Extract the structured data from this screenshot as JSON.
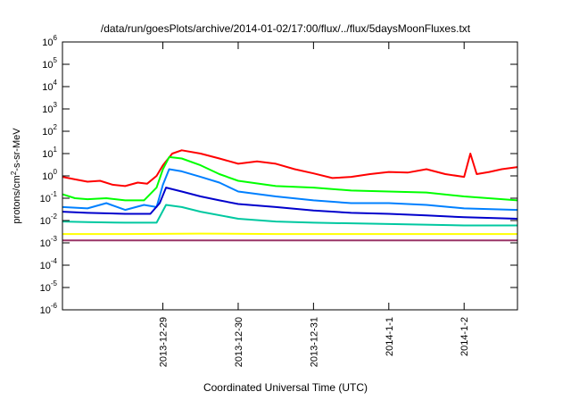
{
  "chart_data": {
    "type": "line",
    "title": "/data/run/goesPlots/archive/2014-01-02/17:00/flux/../flux/5daysMoonFluxes.txt",
    "xlabel": "Coordinated Universal Time (UTC)",
    "ylabel": {
      "prefix": "protons/cm",
      "sup": "2",
      "suffix": "-s-sr-MeV"
    },
    "yscale": "log",
    "ylim": [
      1e-06,
      1000000.0
    ],
    "xlim": [
      "2013-12-27T16:00",
      "2014-01-02T17:00"
    ],
    "grid": false,
    "legend": "none",
    "yticks": [
      {
        "value": 1000000.0,
        "base": "10",
        "exp": "6"
      },
      {
        "value": 100000.0,
        "base": "10",
        "exp": "5"
      },
      {
        "value": 10000.0,
        "base": "10",
        "exp": "4"
      },
      {
        "value": 1000.0,
        "base": "10",
        "exp": "3"
      },
      {
        "value": 100.0,
        "base": "10",
        "exp": "2"
      },
      {
        "value": 10.0,
        "base": "10",
        "exp": "1"
      },
      {
        "value": 1.0,
        "base": "10",
        "exp": "0"
      },
      {
        "value": 0.1,
        "base": "10",
        "exp": "-1"
      },
      {
        "value": 0.01,
        "base": "10",
        "exp": "-2"
      },
      {
        "value": 0.001,
        "base": "10",
        "exp": "-3"
      },
      {
        "value": 0.0001,
        "base": "10",
        "exp": "-4"
      },
      {
        "value": 1e-05,
        "base": "10",
        "exp": "-5"
      },
      {
        "value": 1e-06,
        "base": "10",
        "exp": "-6"
      }
    ],
    "xticks": [
      {
        "value": "2013-12-29T00:00",
        "label": "2013-12-29"
      },
      {
        "value": "2013-12-30T00:00",
        "label": "2013-12-30"
      },
      {
        "value": "2013-12-31T00:00",
        "label": "2013-12-31"
      },
      {
        "value": "2014-01-01T00:00",
        "label": "2014-1-1"
      },
      {
        "value": "2014-01-02T00:00",
        "label": "2014-1-2"
      }
    ],
    "series": [
      {
        "color": "#ff0000",
        "points": [
          [
            "2013-12-27T16:00",
            0.9
          ],
          [
            "2013-12-27T20:00",
            0.7
          ],
          [
            "2013-12-28T00:00",
            0.55
          ],
          [
            "2013-12-28T04:00",
            0.6
          ],
          [
            "2013-12-28T08:00",
            0.4
          ],
          [
            "2013-12-28T12:00",
            0.35
          ],
          [
            "2013-12-28T16:00",
            0.5
          ],
          [
            "2013-12-28T19:00",
            0.45
          ],
          [
            "2013-12-28T22:00",
            1.0
          ],
          [
            "2013-12-29T00:00",
            3.0
          ],
          [
            "2013-12-29T03:00",
            10
          ],
          [
            "2013-12-29T06:00",
            14
          ],
          [
            "2013-12-29T12:00",
            10
          ],
          [
            "2013-12-29T18:00",
            6
          ],
          [
            "2013-12-30T00:00",
            3.5
          ],
          [
            "2013-12-30T06:00",
            4.5
          ],
          [
            "2013-12-30T12:00",
            3.5
          ],
          [
            "2013-12-30T18:00",
            2.0
          ],
          [
            "2013-12-31T00:00",
            1.3
          ],
          [
            "2013-12-31T06:00",
            0.8
          ],
          [
            "2013-12-31T12:00",
            0.9
          ],
          [
            "2013-12-31T18:00",
            1.2
          ],
          [
            "2014-01-01T00:00",
            1.5
          ],
          [
            "2014-01-01T06:00",
            1.4
          ],
          [
            "2014-01-01T12:00",
            2.0
          ],
          [
            "2014-01-01T18:00",
            1.2
          ],
          [
            "2014-01-02T00:00",
            0.9
          ],
          [
            "2014-01-02T02:00",
            10
          ],
          [
            "2014-01-02T04:00",
            1.2
          ],
          [
            "2014-01-02T08:00",
            1.5
          ],
          [
            "2014-01-02T12:00",
            2.0
          ],
          [
            "2014-01-02T17:00",
            2.5
          ]
        ]
      },
      {
        "color": "#00ff00",
        "points": [
          [
            "2013-12-27T16:00",
            0.15
          ],
          [
            "2013-12-27T20:00",
            0.1
          ],
          [
            "2013-12-28T00:00",
            0.09
          ],
          [
            "2013-12-28T06:00",
            0.1
          ],
          [
            "2013-12-28T12:00",
            0.08
          ],
          [
            "2013-12-28T18:00",
            0.08
          ],
          [
            "2013-12-28T22:00",
            0.3
          ],
          [
            "2013-12-29T00:00",
            2.0
          ],
          [
            "2013-12-29T02:00",
            7
          ],
          [
            "2013-12-29T06:00",
            6
          ],
          [
            "2013-12-29T12:00",
            3
          ],
          [
            "2013-12-29T18:00",
            1.2
          ],
          [
            "2013-12-30T00:00",
            0.6
          ],
          [
            "2013-12-30T12:00",
            0.35
          ],
          [
            "2013-12-31T00:00",
            0.3
          ],
          [
            "2013-12-31T12:00",
            0.22
          ],
          [
            "2014-01-01T00:00",
            0.2
          ],
          [
            "2014-01-01T12:00",
            0.18
          ],
          [
            "2014-01-02T00:00",
            0.12
          ],
          [
            "2014-01-02T17:00",
            0.08
          ]
        ]
      },
      {
        "color": "#0080ff",
        "points": [
          [
            "2013-12-27T16:00",
            0.04
          ],
          [
            "2013-12-28T00:00",
            0.035
          ],
          [
            "2013-12-28T06:00",
            0.06
          ],
          [
            "2013-12-28T12:00",
            0.03
          ],
          [
            "2013-12-28T18:00",
            0.05
          ],
          [
            "2013-12-28T22:00",
            0.04
          ],
          [
            "2013-12-29T00:00",
            0.4
          ],
          [
            "2013-12-29T02:00",
            2.0
          ],
          [
            "2013-12-29T06:00",
            1.6
          ],
          [
            "2013-12-29T12:00",
            0.9
          ],
          [
            "2013-12-29T18:00",
            0.5
          ],
          [
            "2013-12-30T00:00",
            0.2
          ],
          [
            "2013-12-30T12:00",
            0.12
          ],
          [
            "2013-12-31T00:00",
            0.08
          ],
          [
            "2013-12-31T12:00",
            0.06
          ],
          [
            "2014-01-01T00:00",
            0.06
          ],
          [
            "2014-01-01T12:00",
            0.05
          ],
          [
            "2014-01-02T00:00",
            0.035
          ],
          [
            "2014-01-02T17:00",
            0.03
          ]
        ]
      },
      {
        "color": "#0000cc",
        "points": [
          [
            "2013-12-27T16:00",
            0.025
          ],
          [
            "2013-12-28T00:00",
            0.022
          ],
          [
            "2013-12-28T12:00",
            0.02
          ],
          [
            "2013-12-28T20:00",
            0.02
          ],
          [
            "2013-12-28T23:00",
            0.06
          ],
          [
            "2013-12-29T01:00",
            0.3
          ],
          [
            "2013-12-29T06:00",
            0.2
          ],
          [
            "2013-12-29T12:00",
            0.12
          ],
          [
            "2013-12-29T18:00",
            0.08
          ],
          [
            "2013-12-30T00:00",
            0.055
          ],
          [
            "2013-12-30T12:00",
            0.04
          ],
          [
            "2013-12-31T00:00",
            0.028
          ],
          [
            "2013-12-31T12:00",
            0.022
          ],
          [
            "2014-01-01T00:00",
            0.02
          ],
          [
            "2014-01-01T12:00",
            0.017
          ],
          [
            "2014-01-02T00:00",
            0.014
          ],
          [
            "2014-01-02T17:00",
            0.012
          ]
        ]
      },
      {
        "color": "#00c8a0",
        "points": [
          [
            "2013-12-27T16:00",
            0.009
          ],
          [
            "2013-12-28T00:00",
            0.0085
          ],
          [
            "2013-12-28T12:00",
            0.008
          ],
          [
            "2013-12-28T22:00",
            0.008
          ],
          [
            "2013-12-29T01:00",
            0.05
          ],
          [
            "2013-12-29T06:00",
            0.04
          ],
          [
            "2013-12-29T12:00",
            0.025
          ],
          [
            "2013-12-30T00:00",
            0.012
          ],
          [
            "2013-12-30T12:00",
            0.009
          ],
          [
            "2013-12-31T00:00",
            0.008
          ],
          [
            "2014-01-01T00:00",
            0.007
          ],
          [
            "2014-01-02T00:00",
            0.006
          ],
          [
            "2014-01-02T17:00",
            0.006
          ]
        ]
      },
      {
        "color": "#ffff00",
        "points": [
          [
            "2013-12-27T16:00",
            0.0025
          ],
          [
            "2013-12-28T12:00",
            0.0025
          ],
          [
            "2013-12-29T12:00",
            0.0026
          ],
          [
            "2013-12-30T12:00",
            0.0025
          ],
          [
            "2013-12-31T12:00",
            0.0025
          ],
          [
            "2014-01-01T12:00",
            0.0025
          ],
          [
            "2014-01-02T17:00",
            0.0025
          ]
        ]
      },
      {
        "color": "#993366",
        "points": [
          [
            "2013-12-27T16:00",
            0.0013
          ],
          [
            "2013-12-28T12:00",
            0.0013
          ],
          [
            "2013-12-29T12:00",
            0.0013
          ],
          [
            "2013-12-30T12:00",
            0.0013
          ],
          [
            "2013-12-31T12:00",
            0.0013
          ],
          [
            "2014-01-01T12:00",
            0.0013
          ],
          [
            "2014-01-02T17:00",
            0.0013
          ]
        ]
      }
    ]
  }
}
